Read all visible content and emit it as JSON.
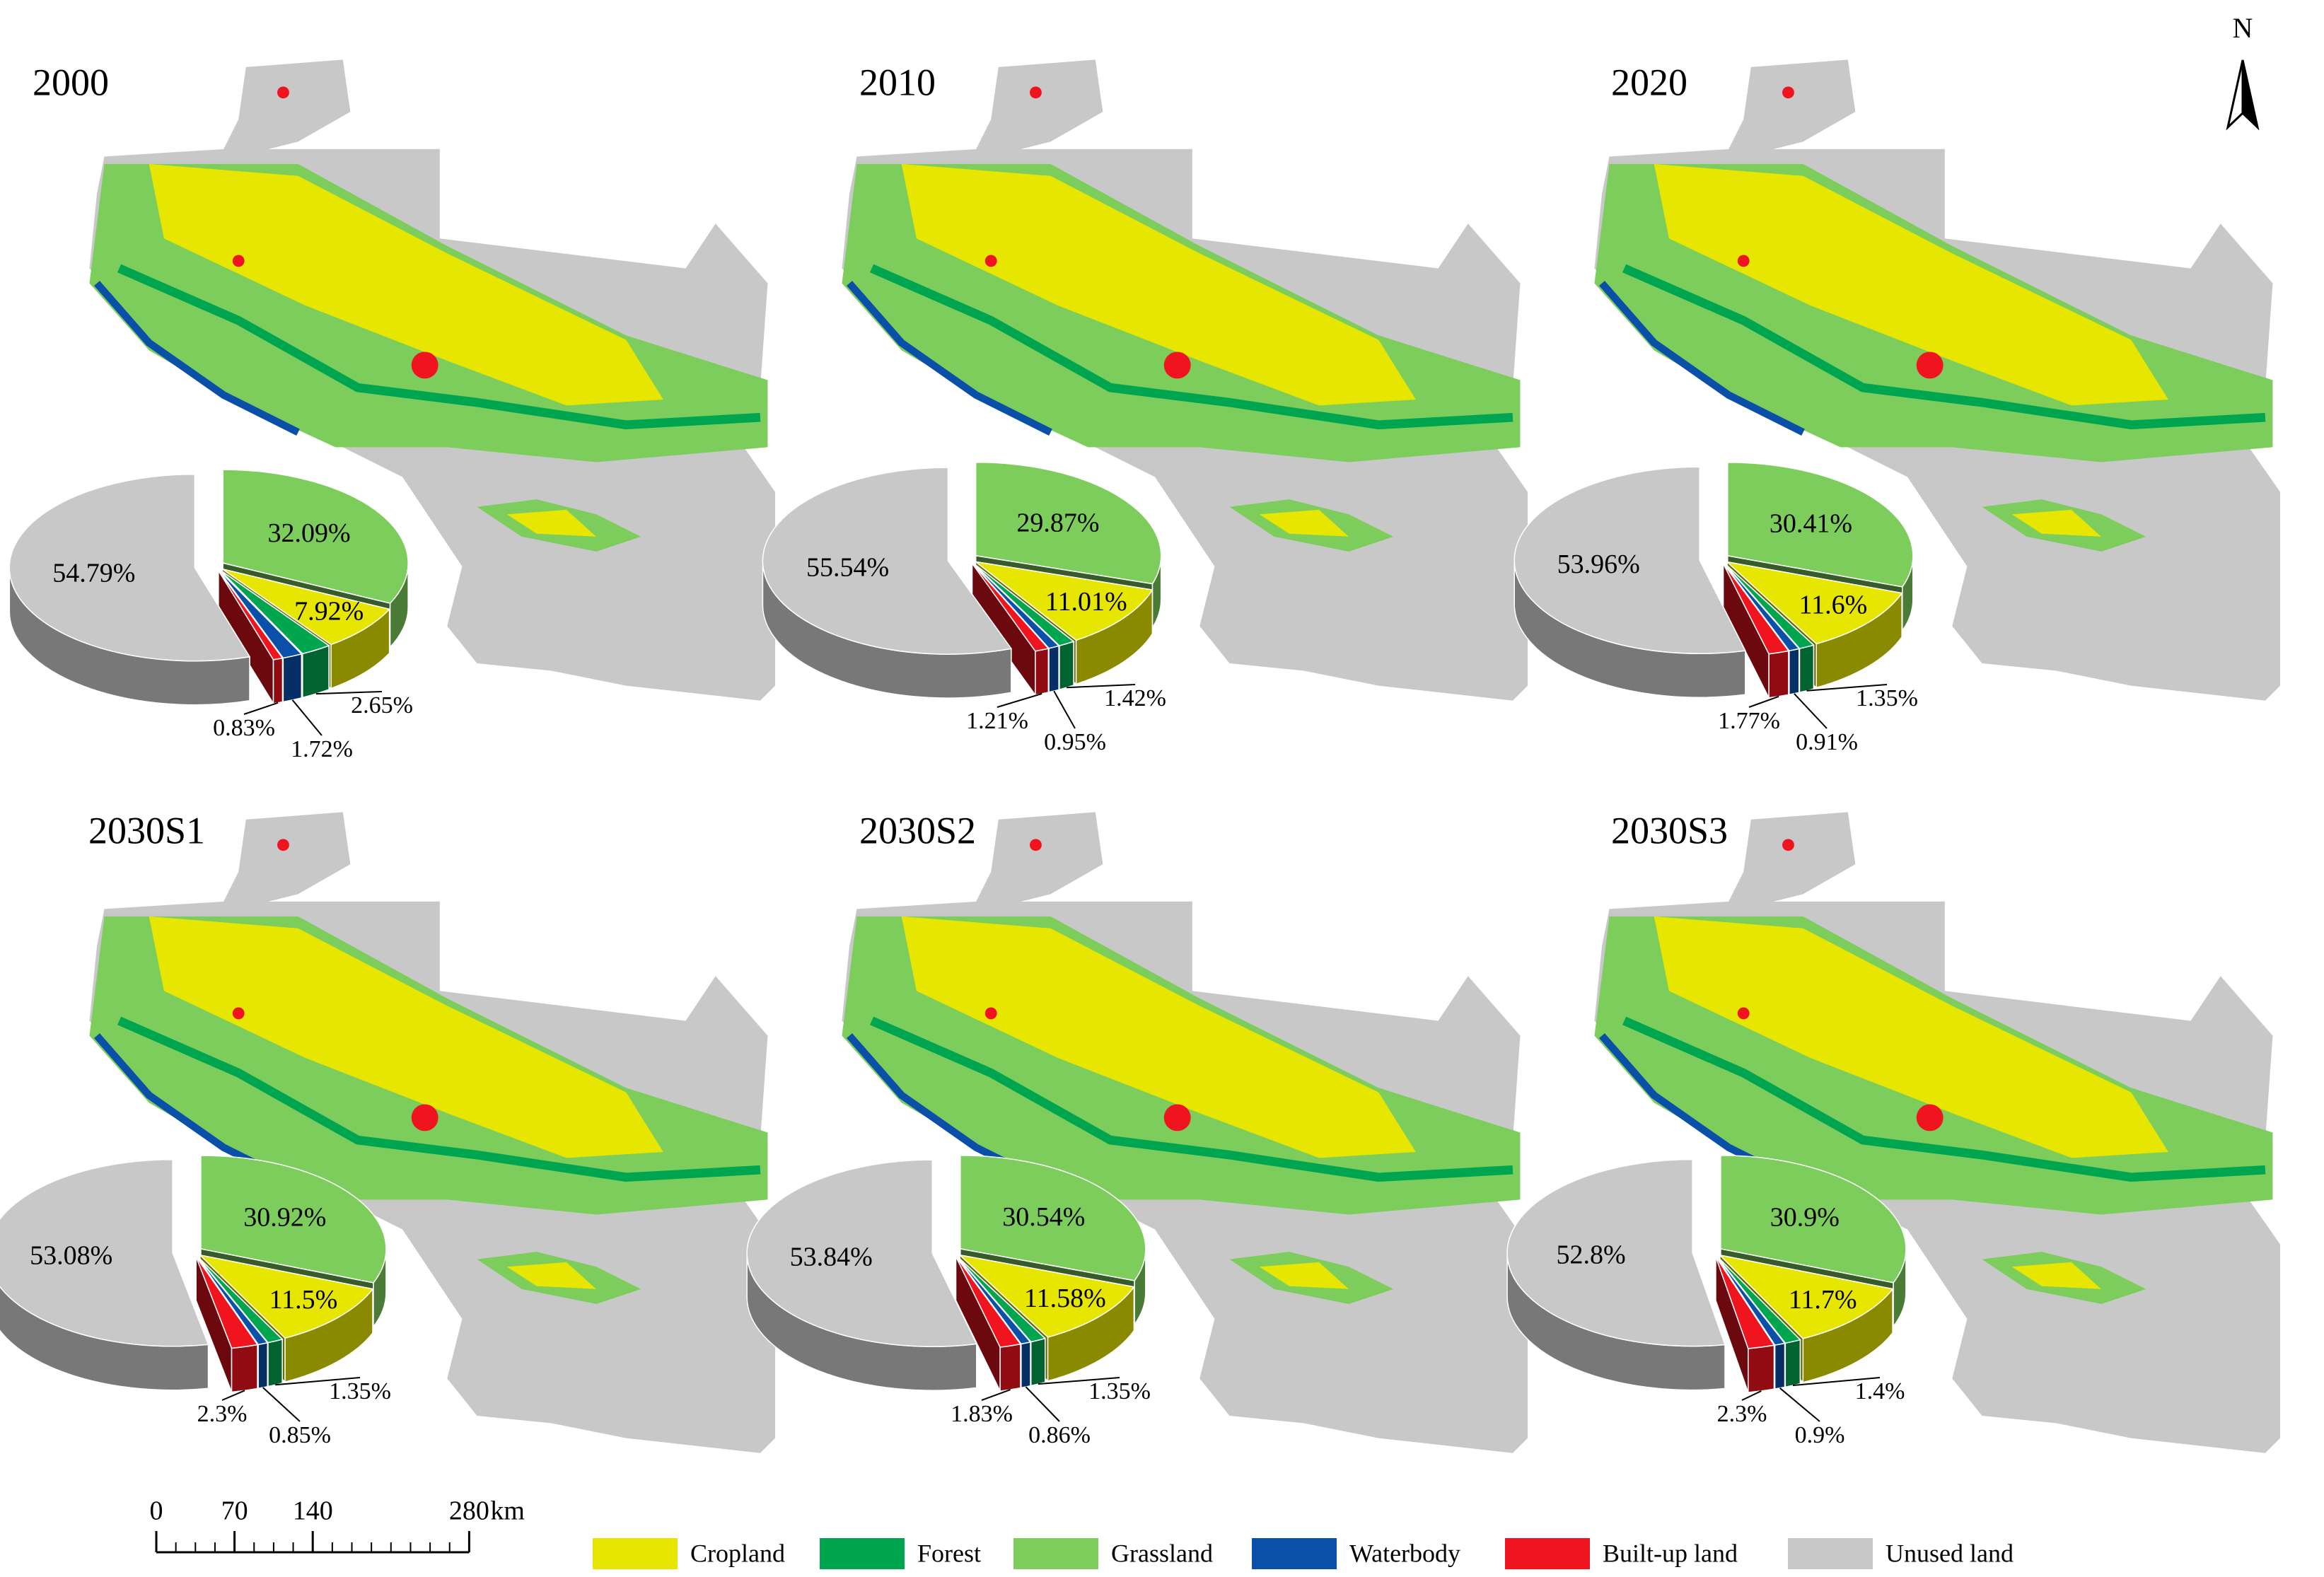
{
  "north": "N",
  "panels": [
    {
      "title": "2000",
      "pie": {
        "values": [
          7.92,
          2.65,
          32.09,
          1.72,
          0.83,
          54.79
        ],
        "value_labels": [
          "7.92%",
          "2.65%",
          "32.09%",
          "1.72%",
          "0.83%",
          "54.79%"
        ]
      }
    },
    {
      "title": "2010",
      "pie": {
        "values": [
          11.01,
          1.42,
          29.87,
          0.95,
          1.21,
          55.54
        ],
        "value_labels": [
          "11.01%",
          "1.42%",
          "29.87%",
          "0.95%",
          "1.21%",
          "55.54%"
        ]
      }
    },
    {
      "title": "2020",
      "pie": {
        "values": [
          11.6,
          1.35,
          30.41,
          0.91,
          1.77,
          53.96
        ],
        "value_labels": [
          "11.6%",
          "1.35%",
          "30.41%",
          "0.91%",
          "1.77%",
          "53.96%"
        ]
      }
    },
    {
      "title": "2030S1",
      "pie": {
        "values": [
          11.5,
          1.35,
          30.92,
          0.85,
          2.3,
          53.08
        ],
        "value_labels": [
          "11.5%",
          "1.35%",
          "30.92%",
          "0.85%",
          "2.3%",
          "53.08%"
        ]
      }
    },
    {
      "title": "2030S2",
      "pie": {
        "values": [
          11.58,
          1.35,
          30.54,
          0.86,
          1.83,
          53.84
        ],
        "value_labels": [
          "11.58%",
          "1.35%",
          "30.54%",
          "0.86%",
          "1.83%",
          "53.84%"
        ]
      }
    },
    {
      "title": "2030S3",
      "pie": {
        "values": [
          11.7,
          1.4,
          30.9,
          0.9,
          2.3,
          52.8
        ],
        "value_labels": [
          "11.7%",
          "1.4%",
          "30.9%",
          "0.9%",
          "2.3%",
          "52.8%"
        ]
      }
    }
  ],
  "legend": {
    "items": [
      {
        "name": "Cropland",
        "color": "#e6e600"
      },
      {
        "name": "Forest",
        "color": "#00a550"
      },
      {
        "name": "Grassland",
        "color": "#7ccd5c"
      },
      {
        "name": "Waterbody",
        "color": "#0a4fa8"
      },
      {
        "name": "Built-up land",
        "color": "#f0141e"
      },
      {
        "name": "Unused land",
        "color": "#c8c8c8"
      }
    ]
  },
  "scale_bar": {
    "ticks": [
      0,
      70,
      140,
      280
    ],
    "unit": "km"
  }
}
